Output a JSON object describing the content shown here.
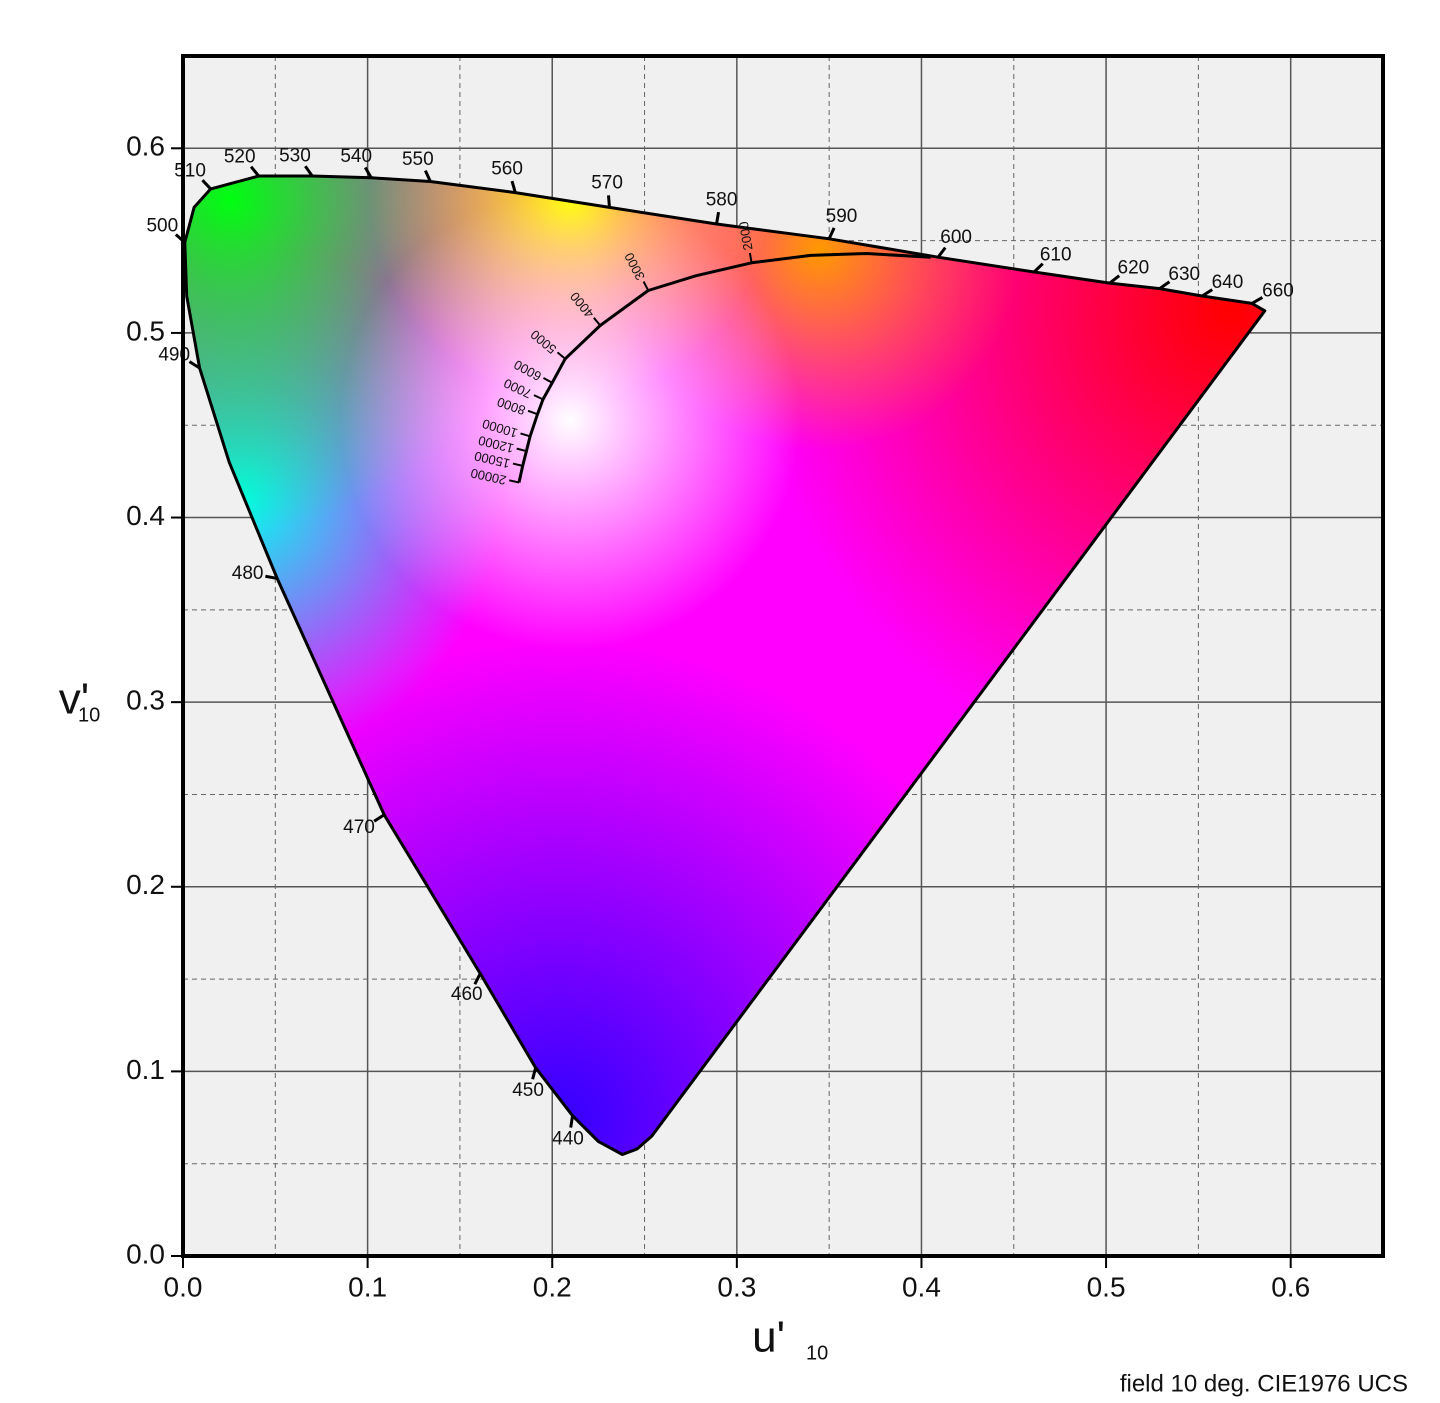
{
  "chart_data": {
    "type": "chromaticity",
    "footer": "field 10 deg. CIE1976 UCS",
    "x_label": "u'",
    "x_label_subscript": "10",
    "y_label": "v'",
    "y_label_subscript": "10",
    "xlim": [
      0,
      0.65
    ],
    "ylim": [
      0,
      0.65
    ],
    "xticks": [
      {
        "value": 0,
        "label": "0.0"
      },
      0.1,
      0.2,
      0.3,
      0.4,
      0.5,
      0.6
    ],
    "yticks": [
      {
        "value": 0,
        "label": "0.0"
      },
      0.1,
      0.2,
      0.3,
      0.4,
      0.5,
      0.6
    ],
    "xminorticks": [
      0.05,
      0.15,
      0.25,
      0.35,
      0.45,
      0.55
    ],
    "yminorticks": [
      0.05,
      0.15,
      0.25,
      0.35,
      0.45,
      0.55
    ],
    "grid": true,
    "spectral_locus": {
      "labels": [
        null,
        null,
        null,
        null,
        "440",
        "450",
        "460",
        "470",
        "480",
        null,
        "490",
        null,
        "500",
        null,
        "510",
        "520",
        "530",
        "540",
        "550",
        "560",
        "570",
        "580",
        "590",
        "600",
        "610",
        "620",
        "630",
        "640",
        "660",
        null
      ],
      "u": [
        0.254,
        0.246,
        0.238,
        0.225,
        0.211,
        0.191,
        0.161,
        0.109,
        0.051,
        0.025,
        0.009,
        0.002,
        0.001,
        0.006,
        0.015,
        0.041,
        0.07,
        0.102,
        0.134,
        0.18,
        0.231,
        0.289,
        0.35,
        0.409,
        0.461,
        0.502,
        0.529,
        0.552,
        0.579,
        0.586
      ],
      "v": [
        0.065,
        0.058,
        0.055,
        0.062,
        0.076,
        0.102,
        0.153,
        0.239,
        0.367,
        0.43,
        0.481,
        0.52,
        0.549,
        0.568,
        0.578,
        0.585,
        0.585,
        0.584,
        0.582,
        0.576,
        0.568,
        0.559,
        0.551,
        0.541,
        0.533,
        0.527,
        0.524,
        0.52,
        0.516,
        0.512
      ]
    },
    "planckian_locus": {
      "labels": [
        null,
        null,
        null,
        "2000",
        null,
        "3000",
        "4000",
        "5000",
        "6000",
        "7000",
        "8000",
        "10000",
        "12000",
        "15000",
        "20000"
      ],
      "u": [
        0.405,
        0.37,
        0.34,
        0.308,
        0.278,
        0.252,
        0.226,
        0.207,
        0.2,
        0.195,
        0.192,
        0.188,
        0.186,
        0.184,
        0.182
      ],
      "v": [
        0.541,
        0.543,
        0.542,
        0.538,
        0.531,
        0.523,
        0.504,
        0.486,
        0.473,
        0.464,
        0.456,
        0.444,
        0.436,
        0.428,
        0.419
      ]
    }
  }
}
